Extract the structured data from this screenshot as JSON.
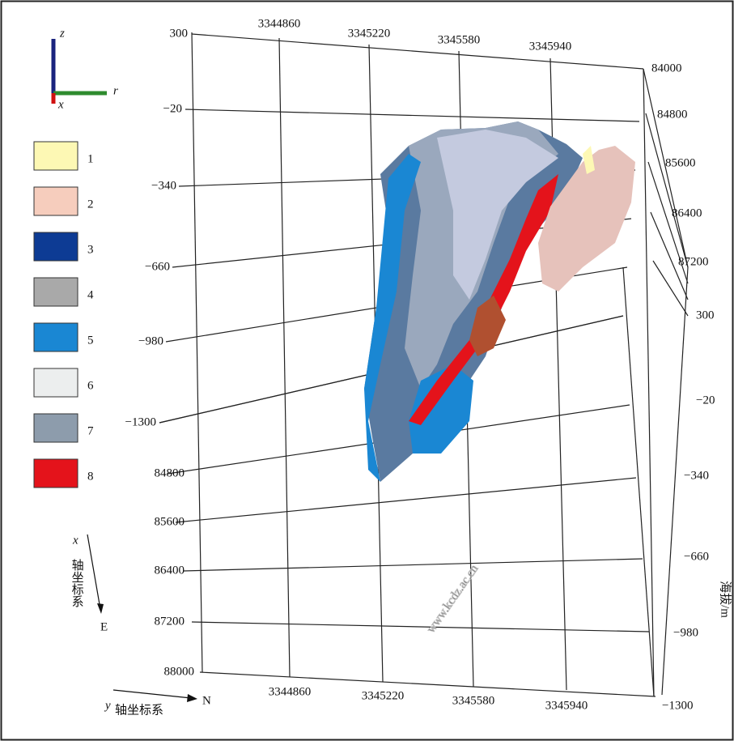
{
  "axes_gizmo": {
    "z": "z",
    "r": "r",
    "x": "x"
  },
  "legend": [
    {
      "label": "1",
      "color": "#fdf8b4"
    },
    {
      "label": "2",
      "color": "#f6cdbd"
    },
    {
      "label": "3",
      "color": "#0d3b94"
    },
    {
      "label": "4",
      "color": "#a9a9a9"
    },
    {
      "label": "5",
      "color": "#1a87d3"
    },
    {
      "label": "6",
      "color": "#eceeee"
    },
    {
      "label": "7",
      "color": "#8d9cac"
    },
    {
      "label": "8",
      "color": "#e4131b"
    }
  ],
  "top_ticks": [
    "3344860",
    "3345220",
    "3345580",
    "3345940"
  ],
  "left_z_ticks": [
    "300",
    "−20",
    "−340",
    "−660",
    "−980",
    "−1300"
  ],
  "left_x_ticks": [
    "84800",
    "85600",
    "86400",
    "87200",
    "88000"
  ],
  "bottom_ticks": [
    "3344860",
    "3345220",
    "3345580",
    "3345940"
  ],
  "right_x_ticks": [
    "84000",
    "84800",
    "85600",
    "86400",
    "87200"
  ],
  "right_z_ticks": [
    "300",
    "−20",
    "−340",
    "−660",
    "−980",
    "−1300"
  ],
  "x_axis_label": {
    "symbol": "x",
    "text": "轴坐标系",
    "direction": "E"
  },
  "y_axis_label": {
    "symbol": "y",
    "text": "轴坐标系",
    "direction": "N"
  },
  "elevation_label": "海拔/m",
  "watermark": "www.kcdz.ac.cn"
}
